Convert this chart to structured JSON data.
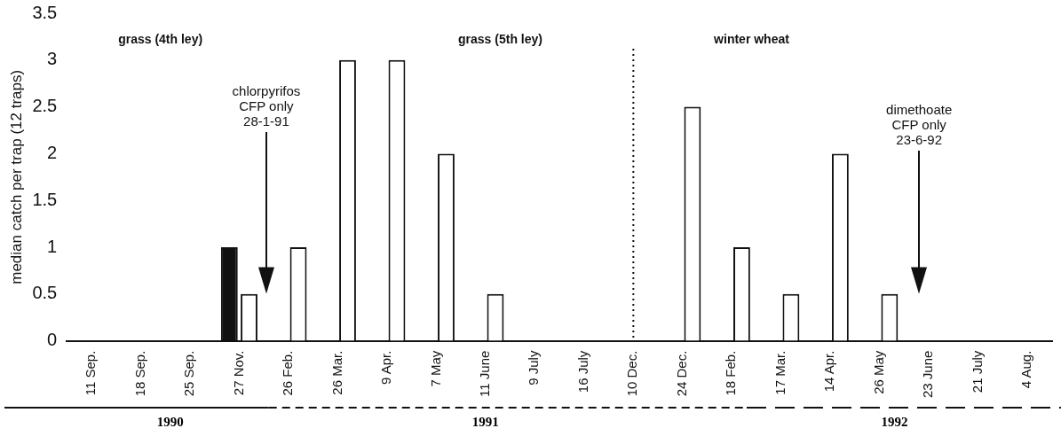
{
  "chart_data": {
    "type": "bar",
    "ylabel": "median catch per trap (12 traps)",
    "categories": [
      "11 Sep.",
      "18 Sep.",
      "25 Sep.",
      "27 Nov.",
      "26 Feb.",
      "26 Mar.",
      "9 Apr.",
      "7 May",
      "11 June",
      "9 July",
      "16 July",
      "10 Dec.",
      "24 Dec.",
      "18 Feb.",
      "17 Mar.",
      "14 Apr.",
      "26 May",
      "23 June",
      "21 July",
      "4 Aug."
    ],
    "series": [
      {
        "color": "#111111",
        "values": [
          0,
          0,
          0,
          1,
          0,
          0,
          0,
          0,
          0,
          0,
          0,
          0,
          0,
          0,
          0,
          0,
          0,
          0,
          0,
          0
        ]
      },
      {
        "color": "#ffffff",
        "values": [
          0,
          0,
          0,
          0.5,
          1,
          3,
          3,
          2,
          0.5,
          0,
          0,
          0,
          2.5,
          1,
          0.5,
          2,
          0.5,
          0,
          0,
          0
        ]
      }
    ],
    "ylim": [
      0,
      3.5
    ],
    "yticks": [
      0,
      0.5,
      1,
      1.5,
      2,
      2.5,
      3,
      3.5
    ],
    "grid": false,
    "legend": false,
    "ref_lines": [
      {
        "axis": "x",
        "value": "10 Dec.",
        "line_style": "dotted"
      }
    ],
    "annotations": [
      "grass (4th ley)",
      "grass (5th ley)",
      "winter wheat",
      "chlorpyrifos\nCFP only\n28-1-91",
      "dimethoate\nCFP only\n23-6-92",
      "1990",
      "1991",
      "1992"
    ]
  }
}
